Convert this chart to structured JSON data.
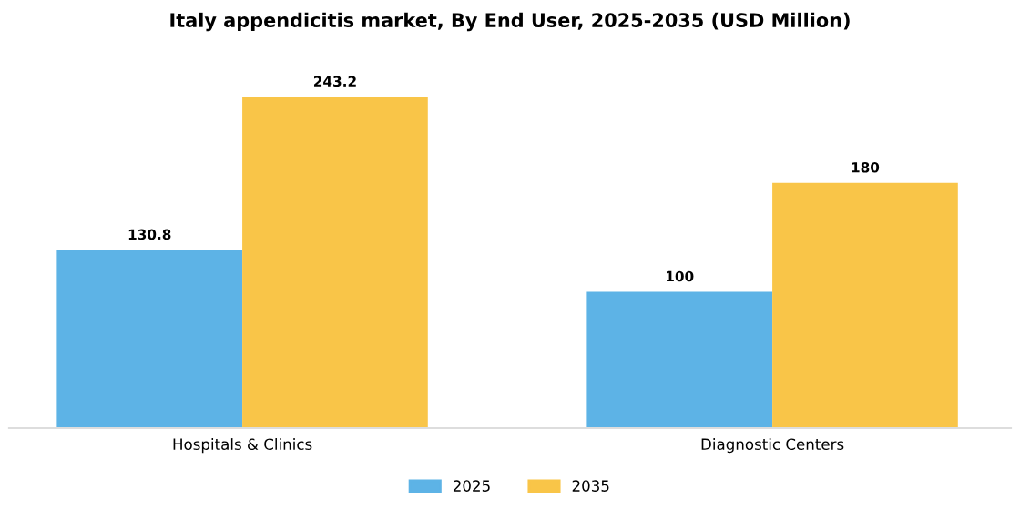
{
  "chart_data": {
    "type": "bar",
    "title": "Italy appendicitis market, By End User, 2025-2035 (USD Million)",
    "categories": [
      "Hospitals & Clinics",
      "Diagnostic Centers"
    ],
    "series": [
      {
        "name": "2025",
        "color": "#5db3e6",
        "values": [
          130.8,
          100
        ]
      },
      {
        "name": "2035",
        "color": "#f9c548",
        "values": [
          243.2,
          180
        ]
      }
    ],
    "data_labels": true,
    "legend": "bottom",
    "grid": false,
    "tick_labels": "x"
  }
}
